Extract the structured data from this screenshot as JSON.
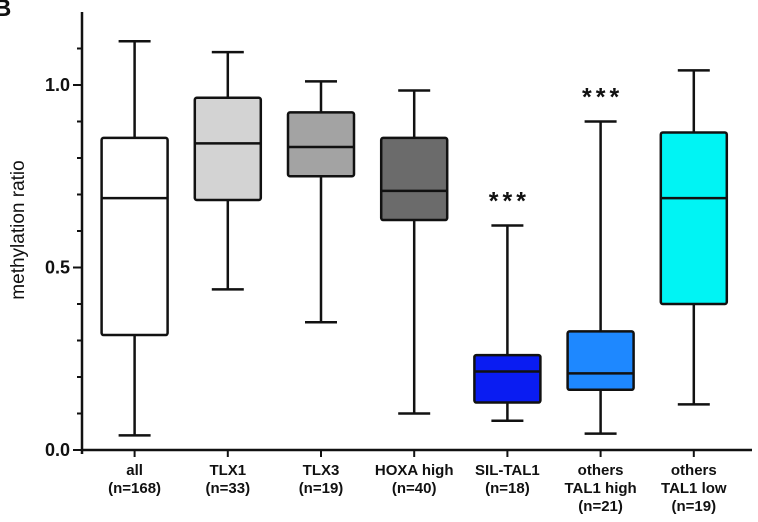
{
  "panel_label": "B",
  "chart_data": {
    "type": "box",
    "title": "",
    "ylabel": "methylation ratio",
    "xlabel": "",
    "ylim": [
      0,
      1.2
    ],
    "yticks": [
      {
        "value": 0,
        "label": "0.0"
      },
      {
        "value": 0.5,
        "label": "0.5"
      },
      {
        "value": 1,
        "label": "1.0"
      }
    ],
    "grid": false,
    "legend": "none",
    "significance_marker": "***",
    "boxes": [
      {
        "lines": [
          "all",
          "(n=168)"
        ],
        "min": 0.04,
        "q1": 0.315,
        "median": 0.69,
        "q3": 0.855,
        "max": 1.12,
        "color": "#ffffff",
        "annotation": ""
      },
      {
        "lines": [
          "TLX1",
          "(n=33)"
        ],
        "min": 0.44,
        "q1": 0.685,
        "median": 0.84,
        "q3": 0.965,
        "max": 1.09,
        "color": "#d3d3d3",
        "annotation": ""
      },
      {
        "lines": [
          "TLX3",
          "(n=19)"
        ],
        "min": 0.35,
        "q1": 0.75,
        "median": 0.83,
        "q3": 0.925,
        "max": 1.01,
        "color": "#a3a3a3",
        "annotation": ""
      },
      {
        "lines": [
          "HOXA high",
          "(n=40)"
        ],
        "min": 0.1,
        "q1": 0.63,
        "median": 0.71,
        "q3": 0.855,
        "max": 0.985,
        "color": "#6b6b6b",
        "annotation": ""
      },
      {
        "lines": [
          "SIL-TAL1",
          "(n=18)"
        ],
        "min": 0.08,
        "q1": 0.13,
        "median": 0.215,
        "q3": 0.26,
        "max": 0.615,
        "color": "#0a1cf2",
        "annotation": "***"
      },
      {
        "lines": [
          "others",
          "TAL1 high",
          "(n=21)"
        ],
        "min": 0.045,
        "q1": 0.165,
        "median": 0.21,
        "q3": 0.325,
        "max": 0.9,
        "color": "#1e88ff",
        "annotation": "***"
      },
      {
        "lines": [
          "others",
          "TAL1 low",
          "(n=19)"
        ],
        "min": 0.125,
        "q1": 0.4,
        "median": 0.69,
        "q3": 0.87,
        "max": 1.04,
        "color": "#00f4f4",
        "annotation": ""
      }
    ]
  }
}
